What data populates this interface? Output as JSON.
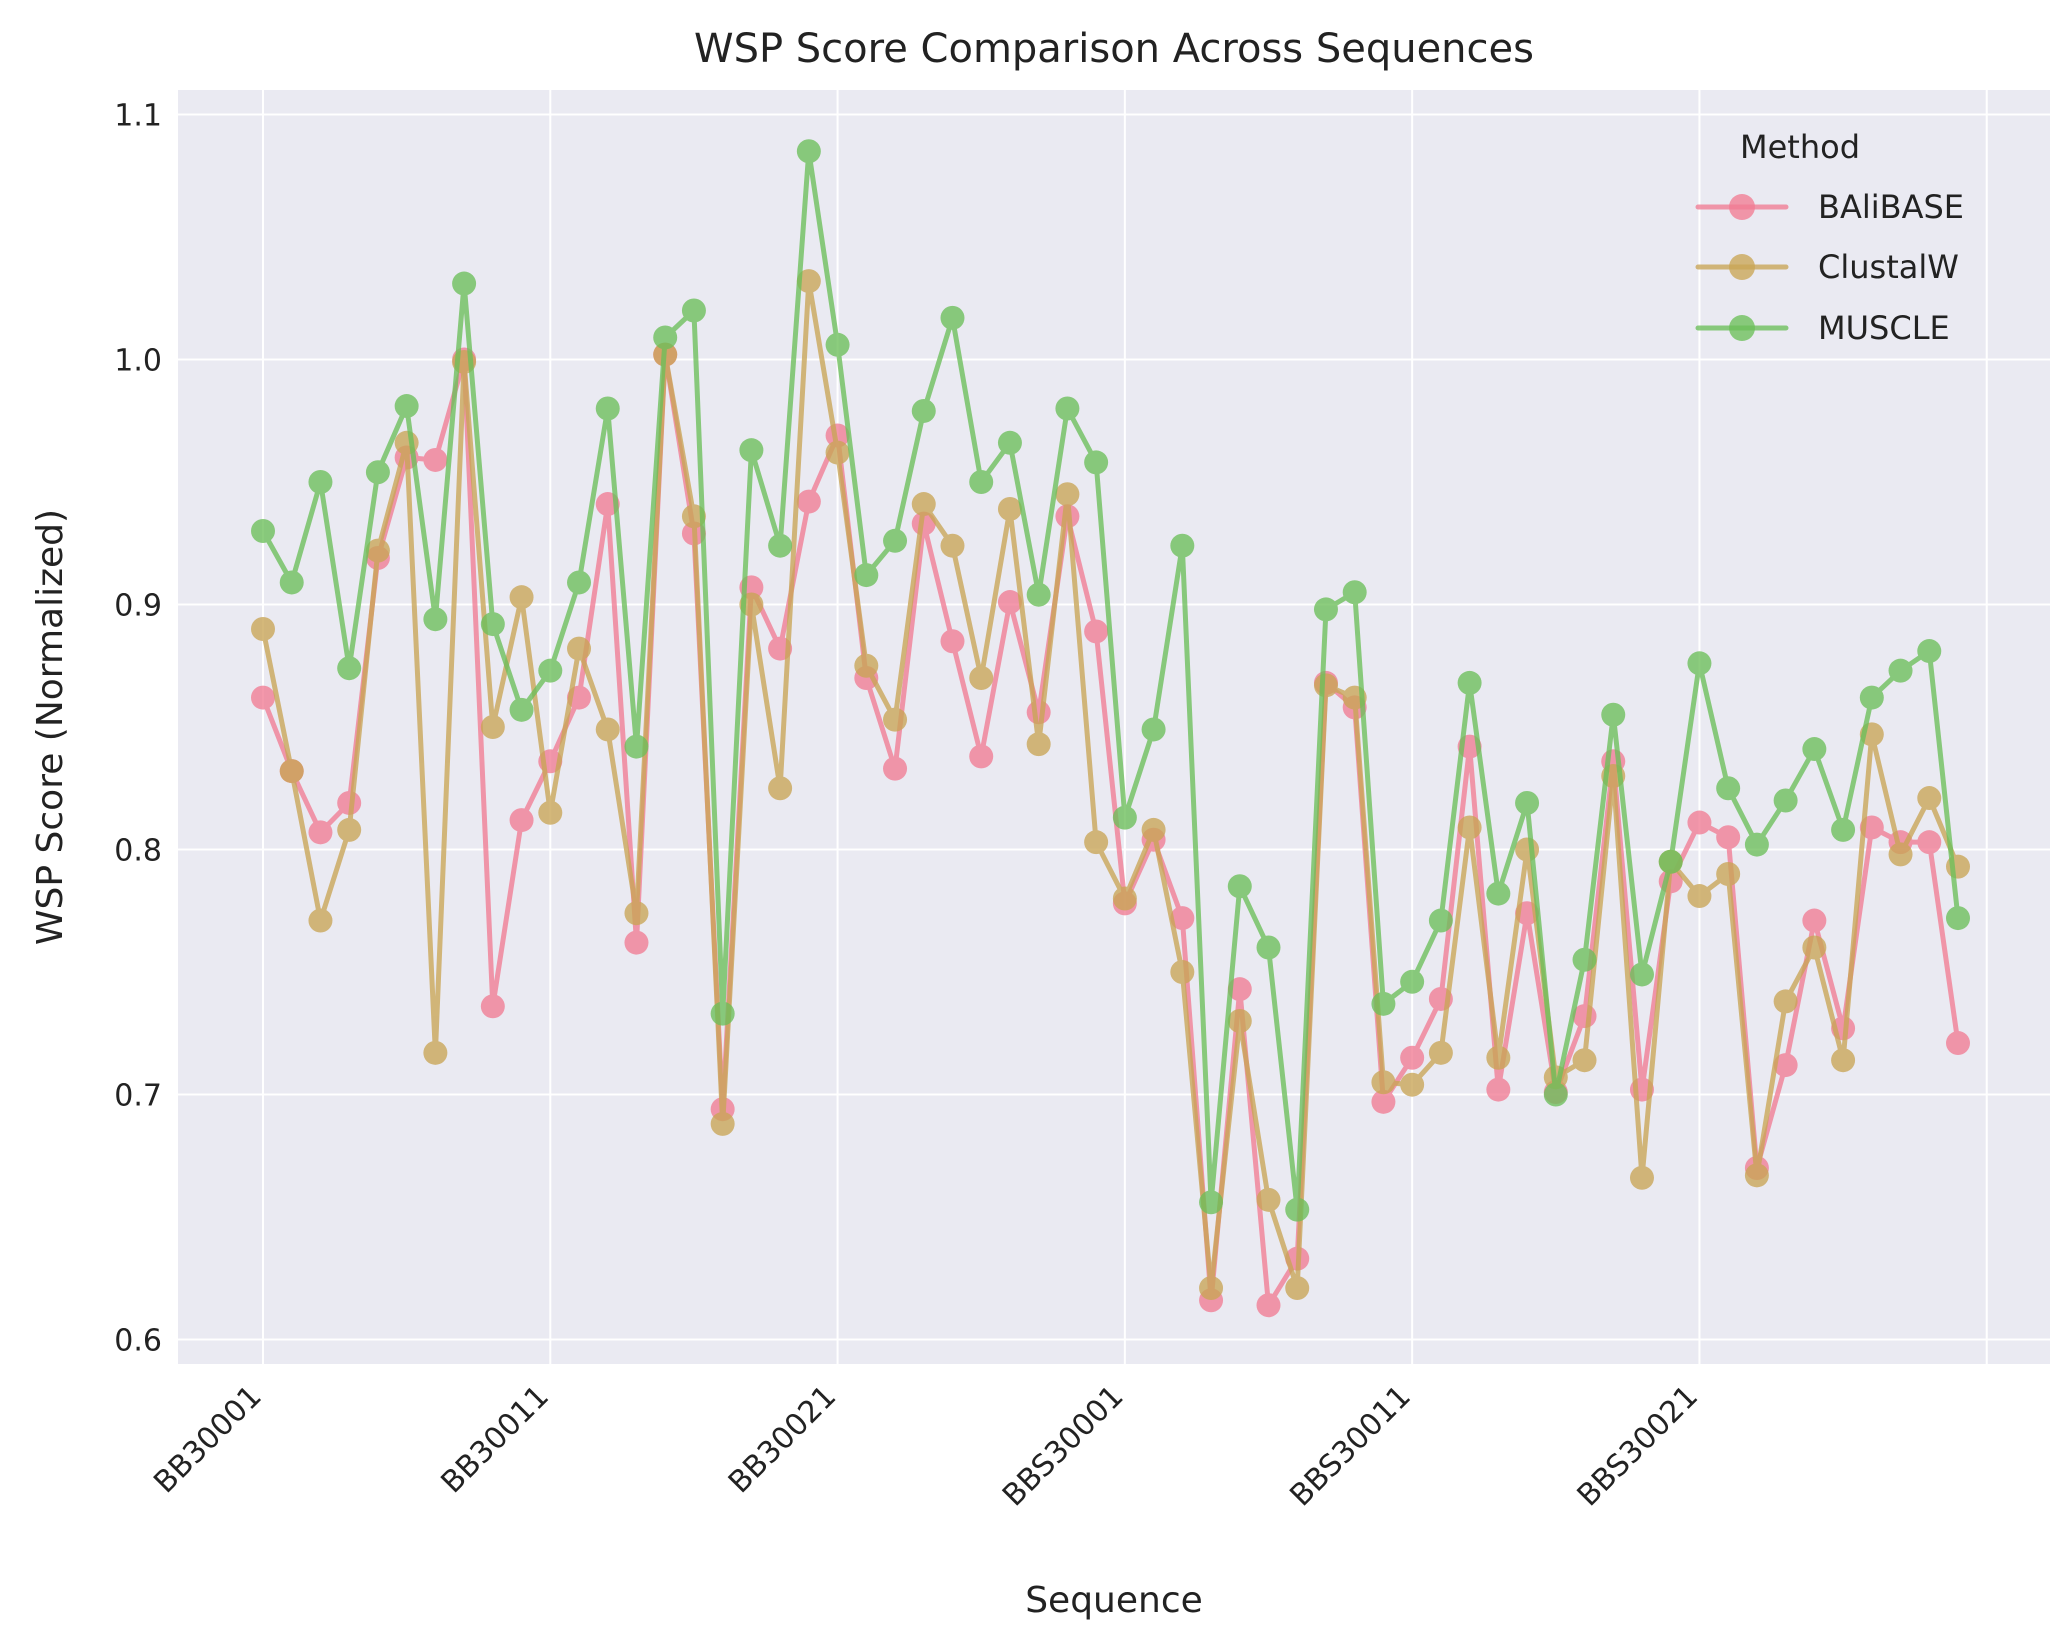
{
  "chart_data": {
    "type": "line",
    "title": "WSP Score Comparison Across Sequences",
    "xlabel": "Sequence",
    "ylabel": "WSP Score (Normalized)",
    "ylim": [
      0.59,
      1.11
    ],
    "yticks": [
      0.6,
      0.7,
      0.8,
      0.9,
      1.0,
      1.1
    ],
    "ytick_labels": [
      "0.6",
      "0.7",
      "0.8",
      "0.9",
      "1.0",
      "1.1"
    ],
    "xtick_labels": [
      "BB30001",
      "BB30011",
      "BB30021",
      "BBS30001",
      "BBS30011",
      "BBS30021"
    ],
    "xtick_positions": [
      0,
      10,
      20,
      30,
      40,
      50
    ],
    "x_count": 60,
    "grid": true,
    "legend": {
      "title": "Method",
      "position": "top-right"
    },
    "series": [
      {
        "name": "BAliBASE",
        "color": "#f17c94",
        "values": [
          0.862,
          0.832,
          0.807,
          0.819,
          0.919,
          0.96,
          0.959,
          1.0,
          0.736,
          0.812,
          0.836,
          0.862,
          0.941,
          0.762,
          1.002,
          0.929,
          0.694,
          0.907,
          0.882,
          0.942,
          0.969,
          0.87,
          0.833,
          0.933,
          0.885,
          0.838,
          0.901,
          0.856,
          0.936,
          0.889,
          0.778,
          0.804,
          0.772,
          0.616,
          0.743,
          0.614,
          0.633,
          0.868,
          0.858,
          0.697,
          0.715,
          0.739,
          0.842,
          0.702,
          0.774,
          0.701,
          0.732,
          0.836,
          0.702,
          0.787,
          0.811,
          0.805,
          0.67,
          0.712,
          0.771,
          0.727,
          0.809,
          0.803,
          0.803,
          0.721
        ]
      },
      {
        "name": "ClustalW",
        "color": "#c9a556",
        "values": [
          0.89,
          0.832,
          0.771,
          0.808,
          0.922,
          0.966,
          0.717,
          0.999,
          0.85,
          0.903,
          0.815,
          0.882,
          0.849,
          0.774,
          1.002,
          0.936,
          0.688,
          0.9,
          0.825,
          1.032,
          0.962,
          0.875,
          0.853,
          0.941,
          0.924,
          0.87,
          0.939,
          0.843,
          0.945,
          0.803,
          0.78,
          0.808,
          0.75,
          0.621,
          0.73,
          0.657,
          0.621,
          0.867,
          0.862,
          0.705,
          0.704,
          0.717,
          0.809,
          0.715,
          0.8,
          0.707,
          0.714,
          0.83,
          0.666,
          0.795,
          0.781,
          0.79,
          0.667,
          0.738,
          0.76,
          0.714,
          0.847,
          0.798,
          0.821,
          0.793
        ]
      },
      {
        "name": "MUSCLE",
        "color": "#6cbf5a",
        "values": [
          0.93,
          0.909,
          0.95,
          0.874,
          0.954,
          0.981,
          0.894,
          1.031,
          0.892,
          0.857,
          0.873,
          0.909,
          0.98,
          0.842,
          1.009,
          1.02,
          0.733,
          0.963,
          0.924,
          1.085,
          1.006,
          0.912,
          0.926,
          0.979,
          1.017,
          0.95,
          0.966,
          0.904,
          0.98,
          0.958,
          0.813,
          0.849,
          0.924,
          0.656,
          0.785,
          0.76,
          0.653,
          0.898,
          0.905,
          0.737,
          0.746,
          0.771,
          0.868,
          0.782,
          0.819,
          0.7,
          0.755,
          0.855,
          0.749,
          0.795,
          0.876,
          0.825,
          0.802,
          0.82,
          0.841,
          0.808,
          0.862,
          0.873,
          0.881,
          0.772
        ]
      }
    ]
  }
}
